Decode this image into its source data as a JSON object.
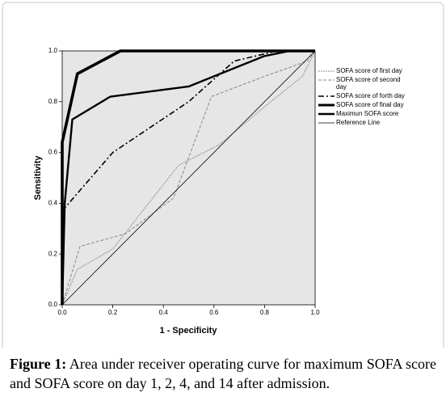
{
  "chart_data": {
    "type": "line",
    "xlabel": "1 - Specificity",
    "ylabel": "Sensitivity",
    "xlim": [
      0,
      1
    ],
    "ylim": [
      0,
      1
    ],
    "xticks": [
      {
        "value": 0,
        "label": "0.0"
      },
      0.2,
      0.4,
      0.6,
      0.8,
      {
        "value": 1,
        "label": "1.0"
      }
    ],
    "yticks": [
      {
        "value": 0,
        "label": "0.0"
      },
      0.2,
      0.4,
      0.6,
      0.8,
      {
        "value": 1,
        "label": "1.0"
      }
    ],
    "legend": "right",
    "background": "#e6e6e6",
    "series": [
      {
        "name": "SOFA score of first day",
        "color": "#888888",
        "style": "dotted",
        "x": [
          0,
          0.06,
          0.2,
          0.46,
          0.62,
          0.8,
          0.95,
          1
        ],
        "values": [
          0,
          0.14,
          0.22,
          0.55,
          0.63,
          0.78,
          0.9,
          1
        ]
      },
      {
        "name": "SOFA score of second day",
        "color": "#888888",
        "style": "dashed",
        "x": [
          0,
          0.07,
          0.25,
          0.44,
          0.59,
          0.8,
          0.97,
          1
        ],
        "values": [
          0,
          0.23,
          0.28,
          0.42,
          0.82,
          0.9,
          0.96,
          1
        ]
      },
      {
        "name": "SOFA score of forth day",
        "color": "#000000",
        "style": "dash-dot",
        "x": [
          0,
          0.2,
          0.5,
          0.68,
          0.85,
          1
        ],
        "values": [
          0.37,
          0.6,
          0.8,
          0.96,
          1,
          1
        ]
      },
      {
        "name": "SOFA score of final day",
        "color": "#000000",
        "style": "bold",
        "x": [
          0,
          0,
          0.06,
          0.23,
          1
        ],
        "values": [
          0,
          0.64,
          0.91,
          1,
          1
        ]
      },
      {
        "name": "Maximun SOFA score",
        "color": "#000000",
        "style": "medium",
        "x": [
          0,
          0.01,
          0.04,
          0.19,
          0.5,
          0.6,
          0.8,
          0.9,
          1
        ],
        "values": [
          0,
          0.4,
          0.73,
          0.82,
          0.86,
          0.9,
          0.98,
          1,
          1
        ]
      },
      {
        "name": "Reference Line",
        "color": "#000000",
        "style": "thin",
        "x": [
          0,
          1
        ],
        "values": [
          0,
          1
        ]
      }
    ]
  },
  "caption": {
    "label": "Figure 1:",
    "text": "Area under receiver operating curve for maximum SOFA score and SOFA score on day 1, 2, 4, and 14 after admission."
  }
}
